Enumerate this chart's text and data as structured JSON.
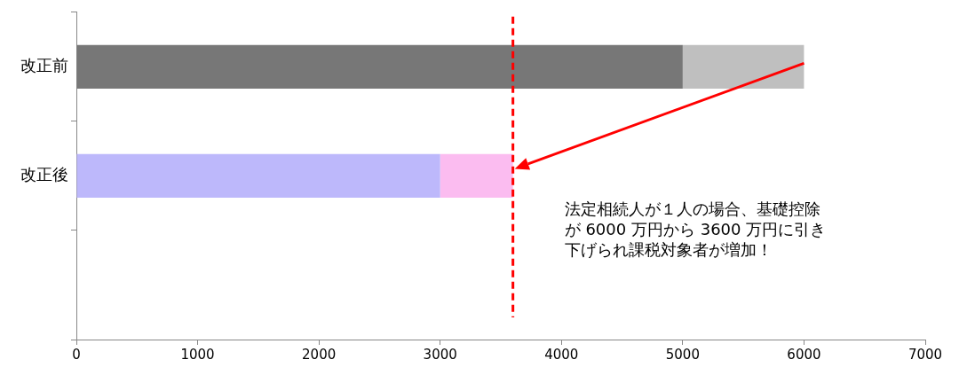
{
  "chart_data": {
    "type": "bar",
    "orientation": "horizontal",
    "stacked": true,
    "categories": [
      "改正前",
      "改正後",
      null
    ],
    "series": [
      {
        "colors": [
          "#777777",
          "#bdb8fb",
          null
        ],
        "values": [
          5000,
          3000,
          null
        ]
      },
      {
        "colors": [
          "#bfbfbf",
          "#fbbcf0",
          null
        ],
        "values": [
          1000,
          600,
          null
        ]
      }
    ],
    "xlim": [
      0,
      7000
    ],
    "xticks": [
      0,
      1000,
      2000,
      3000,
      4000,
      5000,
      6000,
      7000
    ],
    "grid": false,
    "legend": false,
    "ref_lines": [
      {
        "axis": "x",
        "value": 3600,
        "color": "#ff0000",
        "line_style": "dashed"
      }
    ],
    "annotations": [
      "法定相続人が１人の場合、基礎控除が 6000 万円から 3600 万円に引き下げられ課税対象者が増加！"
    ]
  }
}
